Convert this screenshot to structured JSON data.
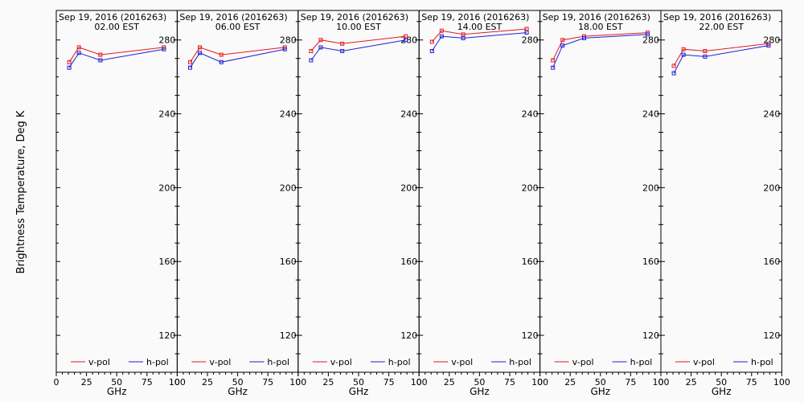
{
  "figure": {
    "ylabel": "Brightness Temperature, Deg K",
    "xlabel": "GHz",
    "legend": [
      {
        "name": "v-pol",
        "color": "#e41a1c"
      },
      {
        "name": "h-pol",
        "color": "#1f1fd6"
      }
    ]
  },
  "chart_data": [
    {
      "type": "line",
      "title": "Sep 19, 2016 (2016263)",
      "subtitle": "02.00 EST",
      "x": [
        10.7,
        18.7,
        36.5,
        89.0
      ],
      "xlim": [
        0,
        100
      ],
      "ylim": [
        100,
        296
      ],
      "xticks": [
        0,
        25,
        50,
        75,
        100
      ],
      "yticks": [
        120,
        160,
        200,
        240,
        280
      ],
      "legend_position": "bottom",
      "series": [
        {
          "name": "v-pol",
          "color": "#e41a1c",
          "values": [
            268,
            276,
            272,
            276
          ]
        },
        {
          "name": "h-pol",
          "color": "#1f1fd6",
          "values": [
            265,
            273,
            269,
            275
          ]
        }
      ]
    },
    {
      "type": "line",
      "title": "Sep 19, 2016 (2016263)",
      "subtitle": "06.00 EST",
      "x": [
        10.7,
        18.7,
        36.5,
        89.0
      ],
      "xlim": [
        0,
        100
      ],
      "ylim": [
        100,
        296
      ],
      "xticks": [
        0,
        25,
        50,
        75,
        100
      ],
      "yticks": [
        120,
        160,
        200,
        240,
        280
      ],
      "legend_position": "bottom",
      "series": [
        {
          "name": "v-pol",
          "color": "#e41a1c",
          "values": [
            268,
            276,
            272,
            276
          ]
        },
        {
          "name": "h-pol",
          "color": "#1f1fd6",
          "values": [
            265,
            273,
            268,
            275
          ]
        }
      ]
    },
    {
      "type": "line",
      "title": "Sep 19, 2016 (2016263)",
      "subtitle": "10.00 EST",
      "x": [
        10.7,
        18.7,
        36.5,
        89.0
      ],
      "xlim": [
        0,
        100
      ],
      "ylim": [
        100,
        296
      ],
      "xticks": [
        0,
        25,
        50,
        75,
        100
      ],
      "yticks": [
        120,
        160,
        200,
        240,
        280
      ],
      "legend_position": "bottom",
      "series": [
        {
          "name": "v-pol",
          "color": "#e41a1c",
          "values": [
            274,
            280,
            278,
            282
          ]
        },
        {
          "name": "h-pol",
          "color": "#1f1fd6",
          "values": [
            269,
            276,
            274,
            280
          ]
        }
      ]
    },
    {
      "type": "line",
      "title": "Sep 19, 2016 (2016263)",
      "subtitle": "14.00 EST",
      "x": [
        10.7,
        18.7,
        36.5,
        89.0
      ],
      "xlim": [
        0,
        100
      ],
      "ylim": [
        100,
        296
      ],
      "xticks": [
        0,
        25,
        50,
        75,
        100
      ],
      "yticks": [
        120,
        160,
        200,
        240,
        280
      ],
      "legend_position": "bottom",
      "series": [
        {
          "name": "v-pol",
          "color": "#e41a1c",
          "values": [
            279,
            285,
            283,
            286
          ]
        },
        {
          "name": "h-pol",
          "color": "#1f1fd6",
          "values": [
            274,
            282,
            281,
            284
          ]
        }
      ]
    },
    {
      "type": "line",
      "title": "Sep 19, 2016 (2016263)",
      "subtitle": "18.00 EST",
      "x": [
        10.7,
        18.7,
        36.5,
        89.0
      ],
      "xlim": [
        0,
        100
      ],
      "ylim": [
        100,
        296
      ],
      "xticks": [
        0,
        25,
        50,
        75,
        100
      ],
      "yticks": [
        120,
        160,
        200,
        240,
        280
      ],
      "legend_position": "bottom",
      "series": [
        {
          "name": "v-pol",
          "color": "#e41a1c",
          "values": [
            269,
            280,
            282,
            284
          ]
        },
        {
          "name": "h-pol",
          "color": "#1f1fd6",
          "values": [
            265,
            277,
            281,
            283
          ]
        }
      ]
    },
    {
      "type": "line",
      "title": "Sep 19, 2016 (2016263)",
      "subtitle": "22.00 EST",
      "x": [
        10.7,
        18.7,
        36.5,
        89.0
      ],
      "xlim": [
        0,
        100
      ],
      "ylim": [
        100,
        296
      ],
      "xticks": [
        0,
        25,
        50,
        75,
        100
      ],
      "yticks": [
        120,
        160,
        200,
        240,
        280
      ],
      "legend_position": "bottom",
      "series": [
        {
          "name": "v-pol",
          "color": "#e41a1c",
          "values": [
            266,
            275,
            274,
            278
          ]
        },
        {
          "name": "h-pol",
          "color": "#1f1fd6",
          "values": [
            262,
            272,
            271,
            277
          ]
        }
      ]
    }
  ]
}
